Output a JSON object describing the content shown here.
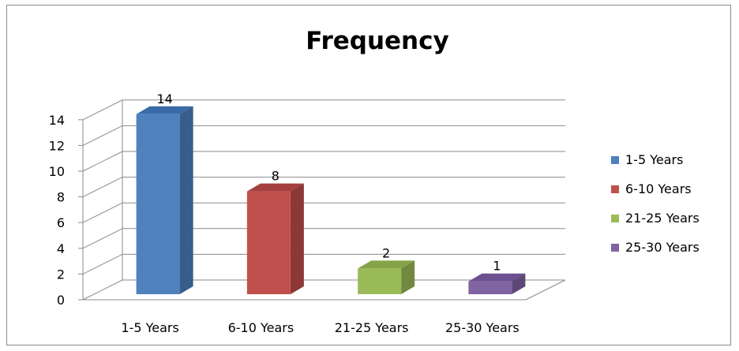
{
  "chart_data": {
    "type": "bar",
    "title": "Frequency",
    "categories": [
      "1-5 Years",
      "6-10 Years",
      "21-25 Years",
      "25-30 Years"
    ],
    "values": [
      14,
      8,
      2,
      1
    ],
    "data_labels": [
      "14",
      "8",
      "2",
      "1"
    ],
    "ylim": [
      0,
      14
    ],
    "yticks": [
      "0",
      "2",
      "4",
      "6",
      "8",
      "10",
      "12",
      "14"
    ],
    "grid": true,
    "legend_position": "right",
    "legend": [
      "1-5 Years",
      "6-10 Years",
      "21-25 Years",
      "25-30 Years"
    ],
    "colors": [
      "#4f81bd",
      "#c0504d",
      "#9bbb59",
      "#8064a2"
    ],
    "side_colors": [
      "#385d8a",
      "#8c3836",
      "#71893f",
      "#5c4776"
    ],
    "top_colors": [
      "#3a6aa8",
      "#a4403d",
      "#86a447",
      "#6b5190"
    ]
  }
}
